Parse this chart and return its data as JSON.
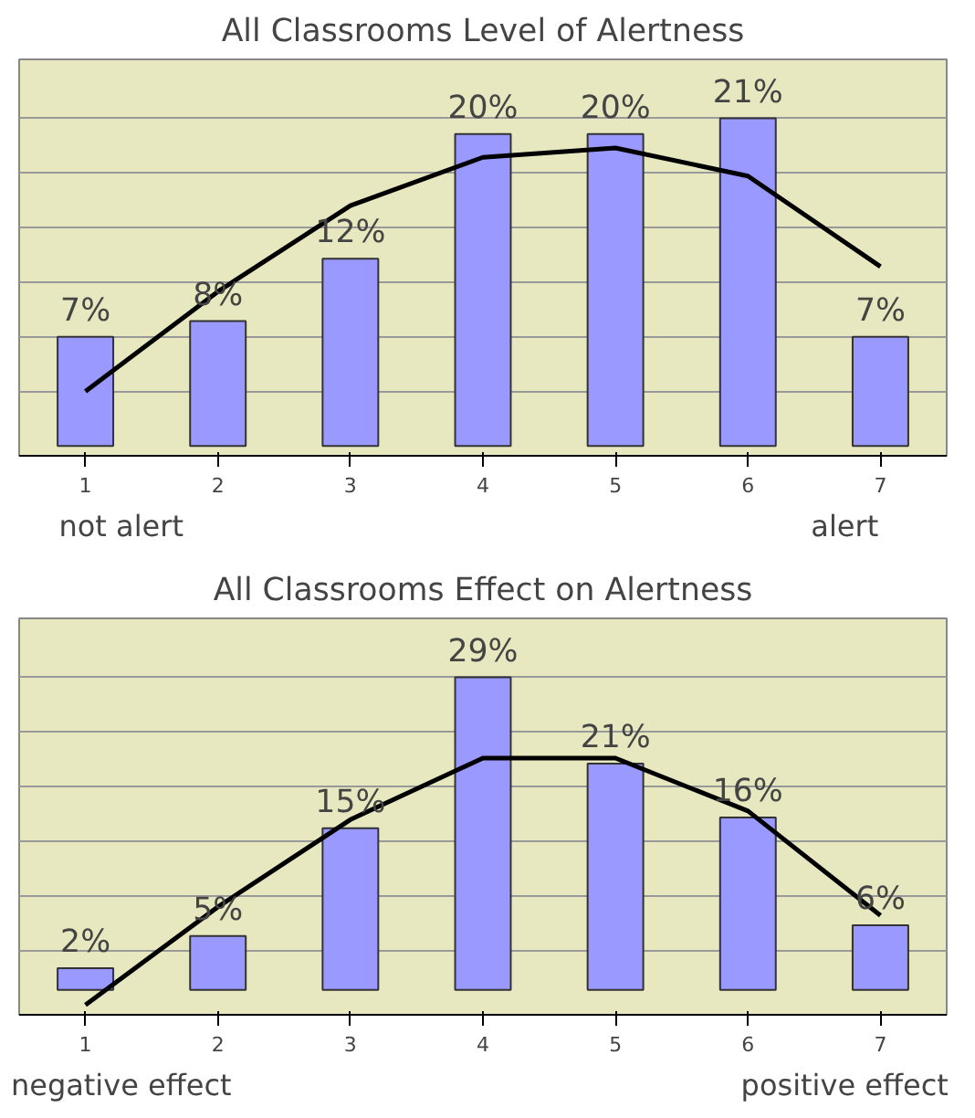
{
  "chart_data": [
    {
      "type": "bar",
      "title": "All Classrooms Level of Alertness",
      "categories": [
        "1",
        "2",
        "3",
        "4",
        "5",
        "6",
        "7"
      ],
      "series": [
        {
          "color": "#9999ff",
          "values": [
            7,
            8,
            12,
            20,
            20,
            21,
            7
          ],
          "value_labels": [
            "7%",
            "8%",
            "12%",
            "20%",
            "20%",
            "21%",
            "7%"
          ]
        },
        {
          "type": "line",
          "color": "#000000",
          "values": [
            3.5,
            9.9,
            15.4,
            18.5,
            19.1,
            17.3,
            11.5
          ]
        }
      ],
      "grid": "y",
      "tick_labels": "x",
      "annotations": [
        "not alert",
        "alert"
      ]
    },
    {
      "type": "bar",
      "title": "All Classrooms Effect on Alertness",
      "categories": [
        "1",
        "2",
        "3",
        "4",
        "5",
        "6",
        "7"
      ],
      "series": [
        {
          "color": "#9999ff",
          "values": [
            2,
            5,
            15,
            29,
            21,
            16,
            6
          ],
          "value_labels": [
            "2%",
            "5%",
            "15%",
            "29%",
            "21%",
            "16%",
            "6%"
          ]
        },
        {
          "type": "line",
          "color": "#000000",
          "values": [
            -1.4,
            7.7,
            15.8,
            21.5,
            21.5,
            16.6,
            6.9
          ]
        }
      ],
      "grid": "y",
      "tick_labels": "x",
      "annotations": [
        "negative effect",
        "positive effect"
      ]
    }
  ]
}
